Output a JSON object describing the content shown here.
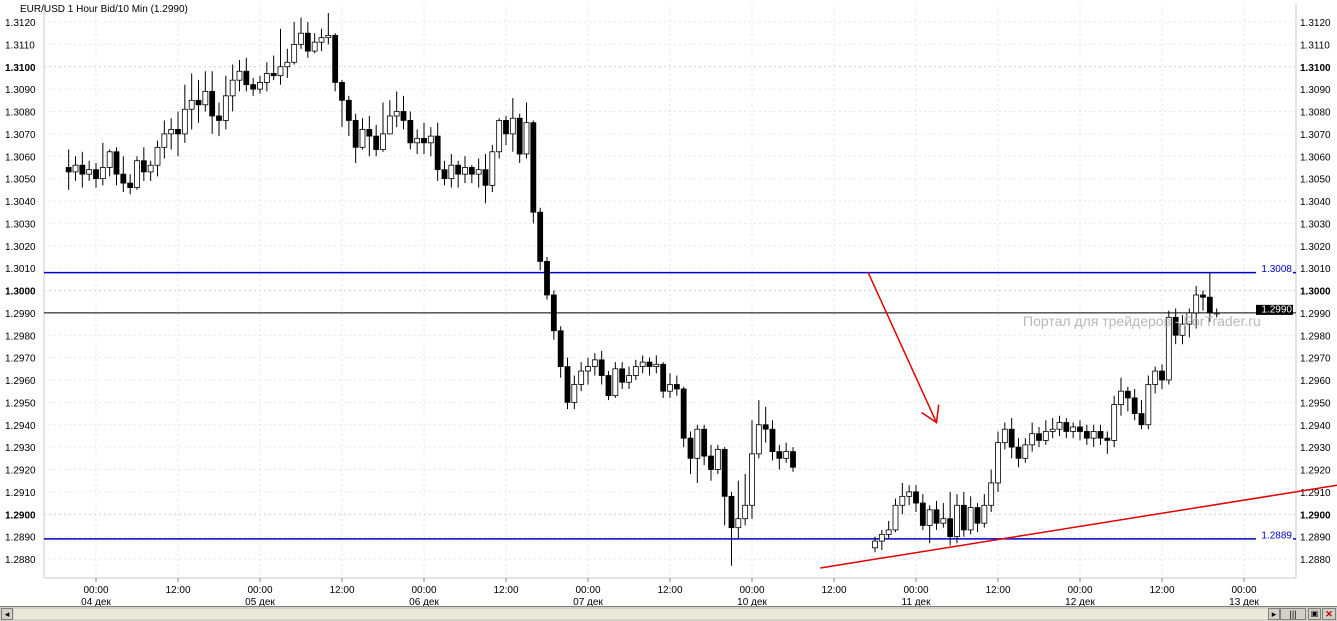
{
  "chart_data": {
    "type": "candlestick",
    "title": "EUR/USD 1 Hour Bid/10 Min (1.2990)",
    "ylim": [
      1.2873,
      1.3126
    ],
    "y_ticks": [
      "1.2880",
      "1.2890",
      "1.2900",
      "1.2910",
      "1.2920",
      "1.2930",
      "1.2940",
      "1.2950",
      "1.2960",
      "1.2970",
      "1.2980",
      "1.2990",
      "1.3000",
      "1.3010",
      "1.3020",
      "1.3030",
      "1.3040",
      "1.3050",
      "1.3060",
      "1.3070",
      "1.3080",
      "1.3090",
      "1.3100",
      "1.3110",
      "1.3120"
    ],
    "bold_ticks": [
      "1.2900",
      "1.3000",
      "1.3100"
    ],
    "x_time_labels": [
      "00:00",
      "12:00",
      "00:00",
      "12:00",
      "00:00",
      "12:00",
      "00:00",
      "12:00",
      "00:00",
      "12:00",
      "00:00",
      "12:00",
      "00:00",
      "12:00",
      "00:00"
    ],
    "x_date_labels": [
      {
        "label": "04 дек",
        "after_time_index": 0
      },
      {
        "label": "05 дек",
        "after_time_index": 2
      },
      {
        "label": "06 дек",
        "after_time_index": 4
      },
      {
        "label": "07 дек",
        "after_time_index": 6
      },
      {
        "label": "10 дек",
        "after_time_index": 8
      },
      {
        "label": "11 дек",
        "after_time_index": 10
      },
      {
        "label": "12 дек",
        "after_time_index": 12
      },
      {
        "label": "13 дек",
        "after_time_index": 14
      }
    ],
    "x_span_hours": 168,
    "first_bar_hour": -4,
    "candles": [
      [
        1.3055,
        1.3053,
        1.3063,
        1.3045
      ],
      [
        1.3053,
        1.3056,
        1.306,
        1.3049
      ],
      [
        1.3056,
        1.3052,
        1.3062,
        1.3046
      ],
      [
        1.3052,
        1.3054,
        1.3058,
        1.3049
      ],
      [
        1.3054,
        1.305,
        1.3057,
        1.3046
      ],
      [
        1.305,
        1.3055,
        1.3066,
        1.3047
      ],
      [
        1.3055,
        1.3062,
        1.3063,
        1.3051
      ],
      [
        1.3062,
        1.3052,
        1.3064,
        1.3047
      ],
      [
        1.3052,
        1.3048,
        1.306,
        1.3044
      ],
      [
        1.3048,
        1.3046,
        1.3052,
        1.3043
      ],
      [
        1.3046,
        1.3058,
        1.306,
        1.3045
      ],
      [
        1.3058,
        1.3053,
        1.3064,
        1.3049
      ],
      [
        1.3053,
        1.3056,
        1.3058,
        1.3049
      ],
      [
        1.3056,
        1.3064,
        1.3067,
        1.3051
      ],
      [
        1.3064,
        1.307,
        1.3076,
        1.3059
      ],
      [
        1.307,
        1.3072,
        1.3077,
        1.3063
      ],
      [
        1.3072,
        1.307,
        1.308,
        1.306
      ],
      [
        1.307,
        1.3081,
        1.3092,
        1.3066
      ],
      [
        1.3081,
        1.3085,
        1.3097,
        1.3072
      ],
      [
        1.3085,
        1.3083,
        1.3094,
        1.3075
      ],
      [
        1.3083,
        1.3089,
        1.3098,
        1.308
      ],
      [
        1.3089,
        1.3078,
        1.3098,
        1.307
      ],
      [
        1.3078,
        1.3076,
        1.3084,
        1.3069
      ],
      [
        1.3076,
        1.3087,
        1.3096,
        1.3072
      ],
      [
        1.3087,
        1.3094,
        1.3101,
        1.308
      ],
      [
        1.3094,
        1.3098,
        1.3103,
        1.3089
      ],
      [
        1.3098,
        1.3092,
        1.3104,
        1.3089
      ],
      [
        1.3092,
        1.309,
        1.3095,
        1.3087
      ],
      [
        1.309,
        1.3093,
        1.3096,
        1.3088
      ],
      [
        1.3093,
        1.3097,
        1.3102,
        1.3089
      ],
      [
        1.3097,
        1.3096,
        1.3105,
        1.3094
      ],
      [
        1.3096,
        1.31,
        1.3117,
        1.3092
      ],
      [
        1.31,
        1.3102,
        1.3108,
        1.3095
      ],
      [
        1.3102,
        1.311,
        1.312,
        1.3101
      ],
      [
        1.311,
        1.3115,
        1.3122,
        1.3108
      ],
      [
        1.3115,
        1.3107,
        1.312,
        1.3104
      ],
      [
        1.3107,
        1.3111,
        1.3115,
        1.3106
      ],
      [
        1.3111,
        1.3113,
        1.3117,
        1.3107
      ],
      [
        1.3113,
        1.3114,
        1.3124,
        1.311
      ],
      [
        1.3114,
        1.3093,
        1.3115,
        1.3089
      ],
      [
        1.3093,
        1.3085,
        1.3094,
        1.3073
      ],
      [
        1.3085,
        1.3076,
        1.3087,
        1.3069
      ],
      [
        1.3076,
        1.3064,
        1.3079,
        1.3057
      ],
      [
        1.3064,
        1.3072,
        1.3077,
        1.3063
      ],
      [
        1.3072,
        1.3069,
        1.3078,
        1.306
      ],
      [
        1.3069,
        1.3063,
        1.3074,
        1.306
      ],
      [
        1.3063,
        1.307,
        1.3084,
        1.3062
      ],
      [
        1.307,
        1.3078,
        1.3085,
        1.307
      ],
      [
        1.3078,
        1.308,
        1.3089,
        1.3073
      ],
      [
        1.308,
        1.3076,
        1.3087,
        1.3072
      ],
      [
        1.3076,
        1.3066,
        1.308,
        1.3063
      ],
      [
        1.3066,
        1.3068,
        1.3072,
        1.3061
      ],
      [
        1.3068,
        1.3066,
        1.3075,
        1.3061
      ],
      [
        1.3066,
        1.3069,
        1.3073,
        1.306
      ],
      [
        1.3069,
        1.3054,
        1.3075,
        1.3049
      ],
      [
        1.3054,
        1.305,
        1.3058,
        1.3047
      ],
      [
        1.305,
        1.3056,
        1.3061,
        1.3046
      ],
      [
        1.3056,
        1.3052,
        1.3058,
        1.3046
      ],
      [
        1.3052,
        1.3055,
        1.306,
        1.3048
      ],
      [
        1.3055,
        1.3052,
        1.3056,
        1.3048
      ],
      [
        1.3052,
        1.3054,
        1.3059,
        1.3046
      ],
      [
        1.3054,
        1.3047,
        1.3061,
        1.3039
      ],
      [
        1.3047,
        1.3062,
        1.3065,
        1.3044
      ],
      [
        1.3062,
        1.3076,
        1.3077,
        1.3059
      ],
      [
        1.3076,
        1.307,
        1.3078,
        1.3065
      ],
      [
        1.307,
        1.3077,
        1.3086,
        1.3062
      ],
      [
        1.3077,
        1.3061,
        1.3079,
        1.3057
      ],
      [
        1.3061,
        1.3075,
        1.3084,
        1.3059
      ],
      [
        1.3075,
        1.3035,
        1.3076,
        1.303
      ],
      [
        1.3035,
        1.3013,
        1.3037,
        1.3009
      ],
      [
        1.3013,
        1.2998,
        1.3015,
        1.2996
      ],
      [
        1.2998,
        1.2982,
        1.3,
        1.2978
      ],
      [
        1.2982,
        1.2966,
        1.2984,
        1.2961
      ],
      [
        1.2966,
        1.295,
        1.297,
        1.2947
      ],
      [
        1.295,
        1.2958,
        1.2962,
        1.2947
      ],
      [
        1.2958,
        1.2964,
        1.2968,
        1.2955
      ],
      [
        1.2964,
        1.2966,
        1.297,
        1.2958
      ],
      [
        1.2966,
        1.2969,
        1.2972,
        1.2962
      ],
      [
        1.2969,
        1.2962,
        1.2973,
        1.2958
      ],
      [
        1.2962,
        1.2953,
        1.2964,
        1.2951
      ],
      [
        1.2953,
        1.2965,
        1.2968,
        1.2952
      ],
      [
        1.2965,
        1.2959,
        1.2968,
        1.2956
      ],
      [
        1.2959,
        1.2962,
        1.2966,
        1.2956
      ],
      [
        1.2962,
        1.2966,
        1.2969,
        1.296
      ],
      [
        1.2966,
        1.2968,
        1.2971,
        1.2963
      ],
      [
        1.2968,
        1.2966,
        1.297,
        1.2962
      ],
      [
        1.2966,
        1.2967,
        1.2971,
        1.2963
      ],
      [
        1.2967,
        1.2955,
        1.2968,
        1.2952
      ],
      [
        1.2955,
        1.2958,
        1.2963,
        1.2952
      ],
      [
        1.2958,
        1.2956,
        1.2962,
        1.2953
      ],
      [
        1.2956,
        1.2934,
        1.2957,
        1.293
      ],
      [
        1.2934,
        1.2925,
        1.2937,
        1.2918
      ],
      [
        1.2925,
        1.2938,
        1.294,
        1.2914
      ],
      [
        1.2938,
        1.2926,
        1.294,
        1.2922
      ],
      [
        1.2926,
        1.292,
        1.2931,
        1.2915
      ],
      [
        1.292,
        1.2929,
        1.2931,
        1.2918
      ],
      [
        1.2929,
        1.2908,
        1.293,
        1.2895
      ],
      [
        1.2908,
        1.2894,
        1.291,
        1.2877
      ],
      [
        1.2894,
        1.2898,
        1.2915,
        1.2889
      ],
      [
        1.2898,
        1.2904,
        1.2918,
        1.2895
      ],
      [
        1.2904,
        1.2927,
        1.2942,
        1.2898
      ],
      [
        1.2927,
        1.294,
        1.2951,
        1.2925
      ],
      [
        1.294,
        1.2938,
        1.2948,
        1.2932
      ],
      [
        1.2938,
        1.2928,
        1.2942,
        1.2924
      ],
      [
        1.2928,
        1.2925,
        1.2931,
        1.292
      ],
      [
        1.2925,
        1.2928,
        1.2932,
        1.2923
      ],
      [
        1.2928,
        1.2921,
        1.293,
        1.2919
      ],
      [
        1.2885,
        1.2888,
        1.289,
        1.2883
      ],
      [
        1.2888,
        1.2891,
        1.2893,
        1.2884
      ],
      [
        1.2891,
        1.2893,
        1.2897,
        1.2889
      ],
      [
        1.2893,
        1.2904,
        1.2907,
        1.2892
      ],
      [
        1.2904,
        1.2908,
        1.2914,
        1.29
      ],
      [
        1.2908,
        1.291,
        1.2913,
        1.2904
      ],
      [
        1.291,
        1.2905,
        1.2913,
        1.2901
      ],
      [
        1.2905,
        1.2895,
        1.2909,
        1.2893
      ],
      [
        1.2895,
        1.2902,
        1.2904,
        1.2887
      ],
      [
        1.2902,
        1.2896,
        1.2906,
        1.2893
      ],
      [
        1.2896,
        1.2898,
        1.2905,
        1.2894
      ],
      [
        1.2898,
        1.289,
        1.291,
        1.2886
      ],
      [
        1.289,
        1.2904,
        1.2909,
        1.2887
      ],
      [
        1.2904,
        1.2893,
        1.291,
        1.289
      ],
      [
        1.2893,
        1.2903,
        1.2908,
        1.2891
      ],
      [
        1.2903,
        1.2896,
        1.2905,
        1.2892
      ],
      [
        1.2896,
        1.2904,
        1.2909,
        1.2894
      ],
      [
        1.2904,
        1.2914,
        1.292,
        1.2901
      ],
      [
        1.2914,
        1.2932,
        1.2937,
        1.291
      ],
      [
        1.2932,
        1.2938,
        1.2941,
        1.2929
      ],
      [
        1.2938,
        1.293,
        1.2943,
        1.2925
      ],
      [
        1.293,
        1.2925,
        1.2934,
        1.2921
      ],
      [
        1.2925,
        1.2931,
        1.2934,
        1.2923
      ],
      [
        1.2931,
        1.2936,
        1.2941,
        1.2928
      ],
      [
        1.2936,
        1.2933,
        1.2939,
        1.293
      ],
      [
        1.2933,
        1.2937,
        1.2942,
        1.2931
      ],
      [
        1.2937,
        1.2938,
        1.2943,
        1.2934
      ],
      [
        1.2938,
        1.2941,
        1.2944,
        1.2935
      ],
      [
        1.2941,
        1.2937,
        1.2943,
        1.2934
      ],
      [
        1.2937,
        1.2939,
        1.2941,
        1.2934
      ],
      [
        1.2939,
        1.2937,
        1.2942,
        1.2933
      ],
      [
        1.2937,
        1.2934,
        1.294,
        1.2931
      ],
      [
        1.2934,
        1.2937,
        1.294,
        1.293
      ],
      [
        1.2937,
        1.2934,
        1.294,
        1.2931
      ],
      [
        1.2934,
        1.2933,
        1.2937,
        1.2927
      ],
      [
        1.2933,
        1.2949,
        1.2953,
        1.293
      ],
      [
        1.2949,
        1.2955,
        1.2961,
        1.2944
      ],
      [
        1.2955,
        1.2952,
        1.2957,
        1.2946
      ],
      [
        1.2952,
        1.2945,
        1.2956,
        1.2942
      ],
      [
        1.2945,
        1.294,
        1.2951,
        1.2938
      ],
      [
        1.294,
        1.2958,
        1.2962,
        1.2938
      ],
      [
        1.2958,
        1.2964,
        1.2966,
        1.2954
      ],
      [
        1.2964,
        1.296,
        1.2967,
        1.2956
      ],
      [
        1.296,
        1.2988,
        1.2991,
        1.2958
      ],
      [
        1.2988,
        1.298,
        1.2992,
        1.2976
      ],
      [
        1.298,
        1.2985,
        1.2989,
        1.2976
      ],
      [
        1.2985,
        1.299,
        1.2992,
        1.2979
      ],
      [
        1.299,
        1.2998,
        1.3002,
        1.2983
      ],
      [
        1.2998,
        1.2997,
        1.3,
        1.2991
      ],
      [
        1.2997,
        1.299,
        1.3008,
        1.2986
      ],
      [
        1.299,
        1.299,
        1.2992,
        1.2988
      ]
    ],
    "hlines": [
      {
        "value": 1.3008,
        "label": "1.3008",
        "color": "#0000c8"
      },
      {
        "value": 1.2889,
        "label": "1.2889",
        "color": "#0000c8"
      },
      {
        "value": 1.299,
        "label": "1.2990",
        "color": "#000000"
      }
    ],
    "trendline": {
      "color": "#e00000",
      "from": {
        "hour": 106,
        "price": 1.2876
      },
      "to": {
        "hour": 196,
        "price": 1.292
      }
    },
    "arrow": {
      "color": "#e00000",
      "from": {
        "hour": 113,
        "price": 1.3008
      },
      "to": {
        "hour": 123,
        "price": 1.2941
      }
    },
    "watermark": "Портал для трейдеров - ForTrader.ru",
    "colors": {
      "grid": "#e6e6e6",
      "up_fill": "#ffffff",
      "down_fill": "#000000",
      "candle_line": "#000000"
    }
  }
}
